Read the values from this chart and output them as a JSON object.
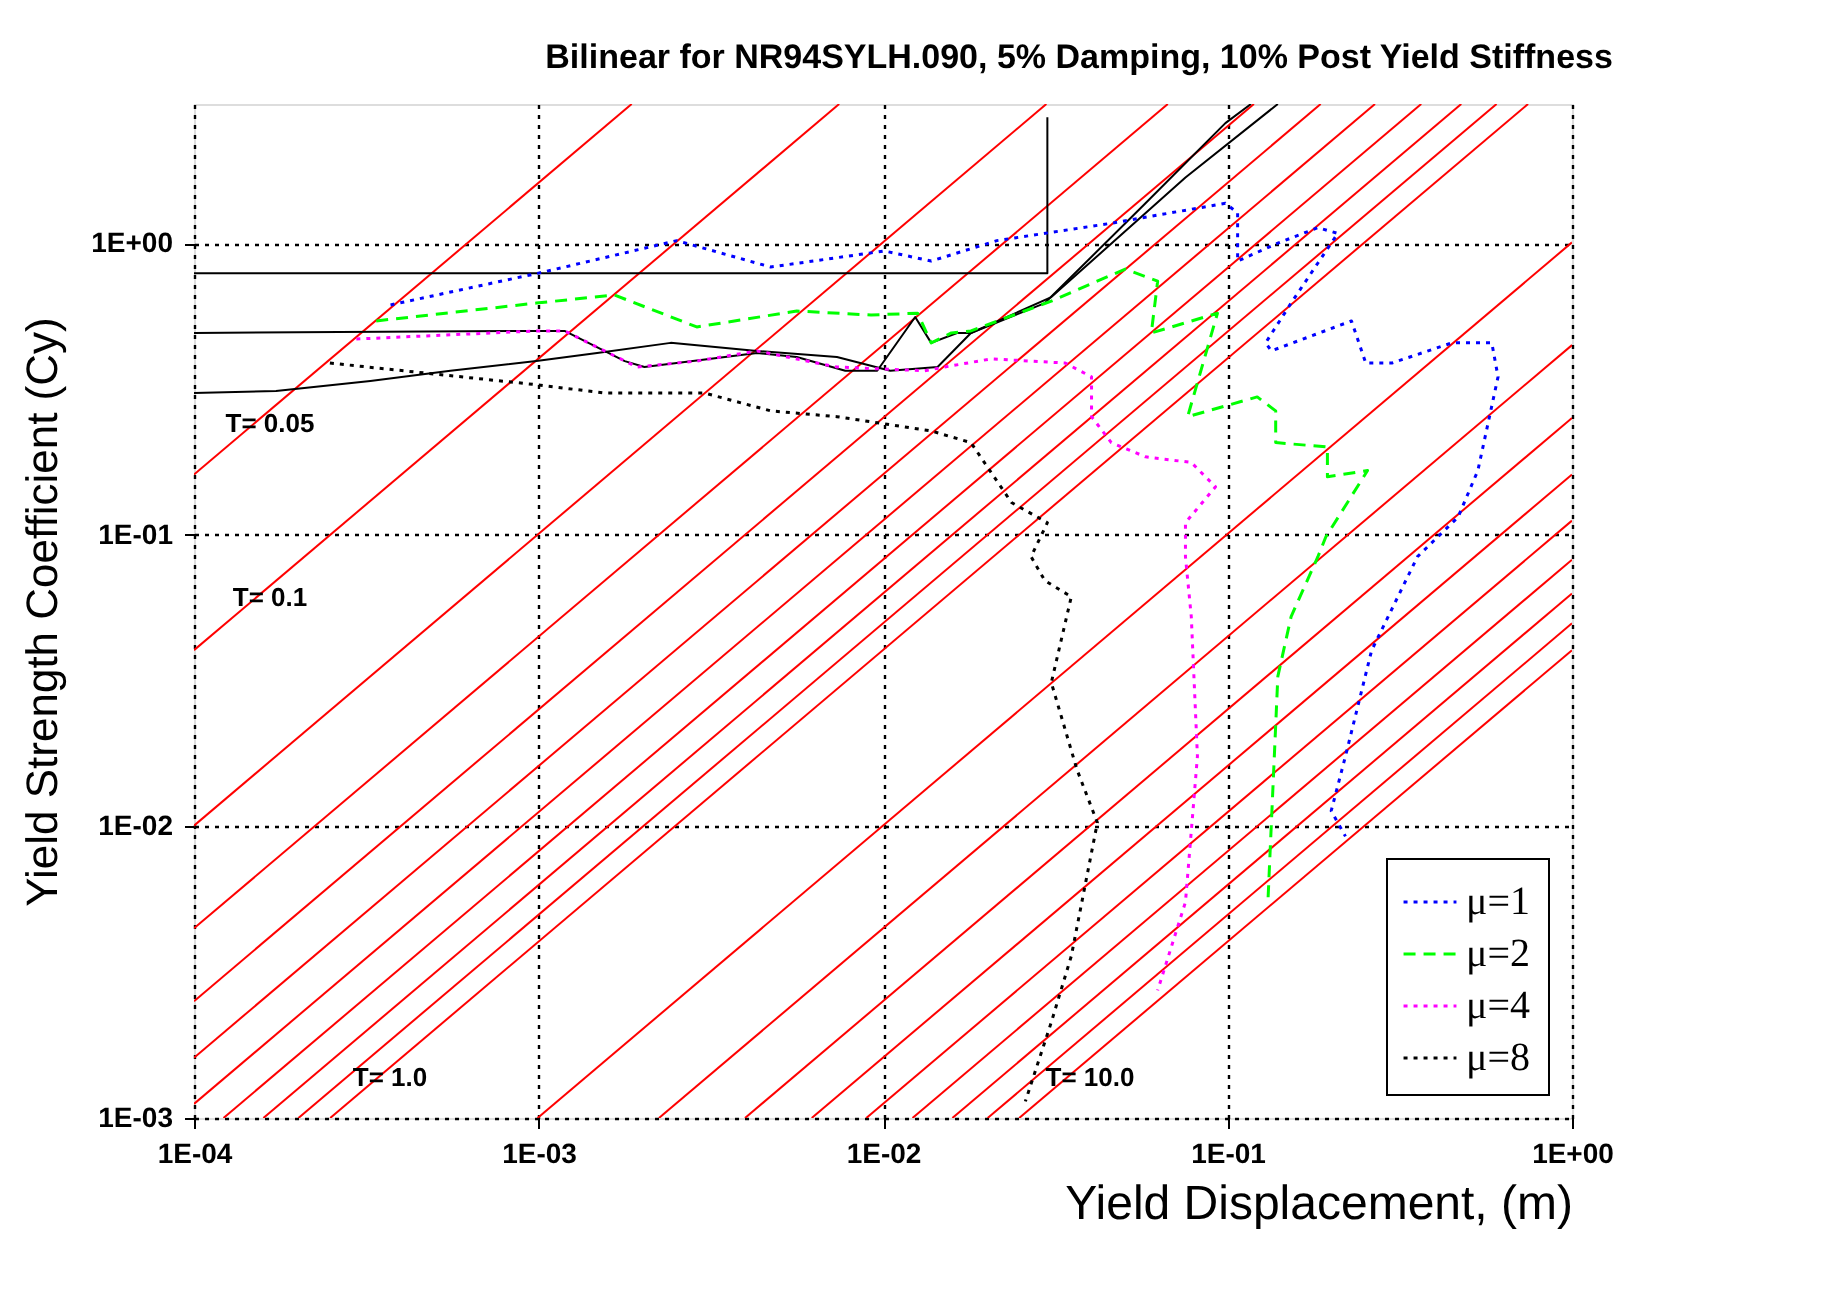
{
  "chart_data": {
    "type": "line",
    "title": "Bilinear for NR94SYLH.090,  5% Damping,  10% Post Yield Stiffness",
    "xlabel": "Yield Displacement, (m)",
    "ylabel": "Yield Strength Coefficient (Cy)",
    "log": "xy",
    "grid": true,
    "legend": "bottom right",
    "marker": "none",
    "xlim": [
      0.0001,
      1
    ],
    "ylim": [
      0.001,
      3
    ],
    "xticks": [
      {
        "value": 0.0001,
        "label": "1E-04"
      },
      {
        "value": 0.001,
        "label": "1E-03"
      },
      {
        "value": 0.01,
        "label": "1E-02"
      },
      {
        "value": 0.1,
        "label": "1E-01"
      },
      {
        "value": 1,
        "label": "1E+00"
      }
    ],
    "yticks": [
      {
        "value": 0.001,
        "label": "1E-03"
      },
      {
        "value": 0.01,
        "label": "1E-02"
      },
      {
        "value": 0.1,
        "label": "1E-01"
      },
      {
        "value": 1,
        "label": "1E+00"
      }
    ],
    "annotations": [
      "T= 0.05",
      "T= 0.1",
      "T= 1.0",
      "T= 10.0"
    ],
    "series": [
      {
        "type": "line",
        "color": "#ff0000",
        "line_style": "solid",
        "x": [
          0.0001,
          0.001864
        ],
        "values": [
          0.161,
          3
        ]
      },
      {
        "type": "line",
        "color": "#ff0000",
        "line_style": "solid",
        "x": [
          0.0001,
          0.00746
        ],
        "values": [
          0.0402,
          3
        ]
      },
      {
        "type": "line",
        "color": "#ff0000",
        "line_style": "solid",
        "x": [
          0.0001,
          0.0298
        ],
        "values": [
          0.01006,
          3
        ]
      },
      {
        "type": "line",
        "color": "#ff0000",
        "line_style": "solid",
        "x": [
          0.0001,
          0.0671
        ],
        "values": [
          0.00447,
          3
        ]
      },
      {
        "type": "line",
        "color": "#ff0000",
        "line_style": "solid",
        "x": [
          0.0001,
          0.1193
        ],
        "values": [
          0.002515,
          3
        ]
      },
      {
        "type": "line",
        "color": "#ff0000",
        "line_style": "solid",
        "x": [
          0.0001,
          0.1864
        ],
        "values": [
          0.00161,
          3
        ]
      },
      {
        "type": "line",
        "color": "#ff0000",
        "line_style": "solid",
        "x": [
          0.0001,
          0.268
        ],
        "values": [
          0.001118,
          3
        ]
      },
      {
        "type": "line",
        "color": "#ff0000",
        "line_style": "solid",
        "x": [
          0.0001218,
          0.365
        ],
        "values": [
          0.001,
          3
        ]
      },
      {
        "type": "line",
        "color": "#ff0000",
        "line_style": "solid",
        "x": [
          0.000159,
          0.477
        ],
        "values": [
          0.001,
          3
        ]
      },
      {
        "type": "line",
        "color": "#ff0000",
        "line_style": "solid",
        "x": [
          0.000201,
          0.604
        ],
        "values": [
          0.001,
          3
        ]
      },
      {
        "type": "line",
        "color": "#ff0000",
        "line_style": "solid",
        "x": [
          0.0002485,
          0.7455
        ],
        "values": [
          0.001,
          3
        ]
      },
      {
        "type": "line",
        "color": "#ff0000",
        "line_style": "solid",
        "x": [
          0.000994,
          1
        ],
        "values": [
          0.001,
          1.006
        ]
      },
      {
        "type": "line",
        "color": "#ff0000",
        "line_style": "solid",
        "x": [
          0.002237,
          1
        ],
        "values": [
          0.001,
          0.447
        ]
      },
      {
        "type": "line",
        "color": "#ff0000",
        "line_style": "solid",
        "x": [
          0.003976,
          1
        ],
        "values": [
          0.001,
          0.2515
        ]
      },
      {
        "type": "line",
        "color": "#ff0000",
        "line_style": "solid",
        "x": [
          0.00621,
          1
        ],
        "values": [
          0.001,
          0.161
        ]
      },
      {
        "type": "line",
        "color": "#ff0000",
        "line_style": "solid",
        "x": [
          0.008945,
          1
        ],
        "values": [
          0.001,
          0.1118
        ]
      },
      {
        "type": "line",
        "color": "#ff0000",
        "line_style": "solid",
        "x": [
          0.01218,
          1
        ],
        "values": [
          0.001,
          0.0821
        ]
      },
      {
        "type": "line",
        "color": "#ff0000",
        "line_style": "solid",
        "x": [
          0.0159,
          1
        ],
        "values": [
          0.001,
          0.0629
        ]
      },
      {
        "type": "line",
        "color": "#ff0000",
        "line_style": "solid",
        "x": [
          0.02013,
          1
        ],
        "values": [
          0.001,
          0.0497
        ]
      },
      {
        "type": "line",
        "color": "#ff0000",
        "line_style": "solid",
        "x": [
          0.02485,
          1
        ],
        "values": [
          0.001,
          0.0402
        ]
      },
      {
        "type": "line",
        "color": "#000000",
        "line_style": "solid",
        "x": [
          0.0001,
          0.000986,
          0.00119,
          0.00178,
          0.00203,
          0.00252,
          0.00431,
          0.00562,
          0.00777,
          0.00962,
          0.0124,
          0.0138,
          0.0164,
          0.018,
          0.0308,
          0.0755,
          0.14
        ],
        "values": [
          0.492,
          0.5,
          0.5,
          0.394,
          0.376,
          0.388,
          0.42,
          0.407,
          0.365,
          0.365,
          0.558,
          0.455,
          0.492,
          0.492,
          0.653,
          1.68,
          3
        ]
      },
      {
        "type": "line",
        "color": "#000000",
        "line_style": "solid",
        "x": [
          0.0001,
          0.000173,
          0.000325,
          0.000555,
          0.000986,
          0.00148,
          0.00242,
          0.00431,
          0.00735,
          0.0105,
          0.0144,
          0.018,
          0.0295,
          0.0578,
          0.0986,
          0.117
        ],
        "values": [
          0.306,
          0.311,
          0.337,
          0.365,
          0.394,
          0.42,
          0.455,
          0.427,
          0.407,
          0.365,
          0.376,
          0.492,
          0.623,
          1.37,
          2.58,
          3
        ]
      },
      {
        "type": "line",
        "color": "#000000",
        "line_style": "solid",
        "x": [
          0.03,
          0.03,
          0.0001
        ],
        "values": [
          2.7,
          0.789,
          0.789
        ]
      },
      {
        "type": "line",
        "name": "μ=1",
        "color": "#0000ff",
        "line_style": "dotted",
        "x": [
          0.000372,
          0.001,
          0.00252,
          0.00472,
          0.0101,
          0.0138,
          0.0214,
          0.046,
          0.0986,
          0.107,
          0.107,
          0.14,
          0.183,
          0.209,
          0.183,
          0.153,
          0.129,
          0.134,
          0.229,
          0.252,
          0.3,
          0.448,
          0.585,
          0.61,
          0.533,
          0.467,
          0.356,
          0.262,
          0.22,
          0.2,
          0.22
        ],
        "values": [
          0.614,
          0.789,
          1.02,
          0.828,
          0.94,
          0.868,
          1.02,
          1.17,
          1.37,
          1.27,
          0.868,
          1.0,
          1.13,
          1.08,
          0.855,
          0.623,
          0.455,
          0.427,
          0.541,
          0.388,
          0.388,
          0.455,
          0.455,
          0.348,
          0.166,
          0.115,
          0.0841,
          0.0401,
          0.0174,
          0.0113,
          0.00924
        ]
      },
      {
        "type": "line",
        "name": "μ=2",
        "color": "#00ff00",
        "line_style": "dashed",
        "x": [
          0.000338,
          0.000986,
          0.00166,
          0.00288,
          0.00562,
          0.00923,
          0.0126,
          0.0138,
          0.0158,
          0.018,
          0.0308,
          0.0505,
          0.0627,
          0.0601,
          0.0935,
          0.0766,
          0.122,
          0.138,
          0.138,
          0.195,
          0.195,
          0.255,
          0.193,
          0.183,
          0.153,
          0.14,
          0.131
        ],
        "values": [
          0.541,
          0.623,
          0.664,
          0.516,
          0.585,
          0.567,
          0.575,
          0.455,
          0.492,
          0.5,
          0.633,
          0.815,
          0.741,
          0.492,
          0.575,
          0.254,
          0.297,
          0.266,
          0.207,
          0.2,
          0.158,
          0.166,
          0.0984,
          0.0841,
          0.0524,
          0.0327,
          0.0055
        ]
      },
      {
        "type": "line",
        "name": "μ=4",
        "color": "#ff00ff",
        "line_style": "dotted",
        "x": [
          0.000296,
          0.000986,
          0.00119,
          0.00193,
          0.00288,
          0.00431,
          0.00735,
          0.0132,
          0.0151,
          0.0206,
          0.0338,
          0.0403,
          0.0403,
          0.046,
          0.0578,
          0.0785,
          0.0923,
          0.0755,
          0.0755,
          0.0785,
          0.0818,
          0.0755,
          0.0627
        ],
        "values": [
          0.469,
          0.5,
          0.5,
          0.376,
          0.394,
          0.427,
          0.376,
          0.365,
          0.376,
          0.401,
          0.388,
          0.348,
          0.254,
          0.207,
          0.185,
          0.177,
          0.146,
          0.11,
          0.0841,
          0.0524,
          0.0174,
          0.0055,
          0.00274
        ]
      },
      {
        "type": "line",
        "name": "μ=8",
        "color": "#000000",
        "line_style": "dotted",
        "x": [
          0.000248,
          0.000986,
          0.00156,
          0.00304,
          0.00472,
          0.00735,
          0.0138,
          0.018,
          0.0236,
          0.03,
          0.0269,
          0.0295,
          0.0352,
          0.0308,
          0.0366,
          0.0419,
          0.0352,
          0.0308,
          0.0259
        ],
        "values": [
          0.388,
          0.327,
          0.306,
          0.306,
          0.266,
          0.254,
          0.227,
          0.207,
          0.129,
          0.11,
          0.0841,
          0.0696,
          0.0613,
          0.0311,
          0.0156,
          0.0103,
          0.00359,
          0.00213,
          0.00114
        ]
      }
    ]
  }
}
